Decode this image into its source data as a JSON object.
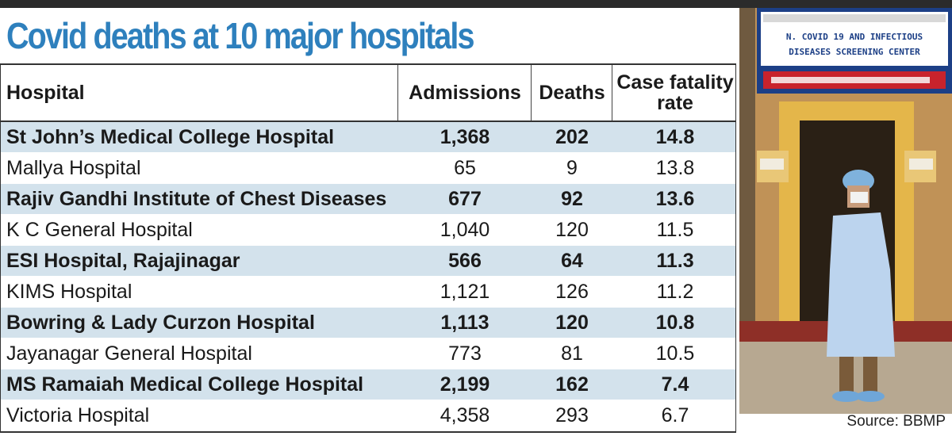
{
  "title": "Covid deaths at 10 major hospitals",
  "source": "Source: BBMP",
  "photo": {
    "sign_line1": "N. COVID 19 AND INFECTIOUS",
    "sign_line2": "DISEASES SCREENING CENTER"
  },
  "chart_data": {
    "type": "table",
    "title": "Covid deaths at 10 major hospitals",
    "columns": [
      "Hospital",
      "Admissions",
      "Deaths",
      "Case fatality rate"
    ],
    "rows": [
      {
        "hospital": "St  John’s Medical College Hospital",
        "admissions": "1,368",
        "deaths": "202",
        "cfr": "14.8"
      },
      {
        "hospital": "Mallya Hospital",
        "admissions": "65",
        "deaths": "9",
        "cfr": "13.8"
      },
      {
        "hospital": "Rajiv Gandhi Institute of Chest Diseases",
        "admissions": "677",
        "deaths": "92",
        "cfr": "13.6"
      },
      {
        "hospital": "K C General Hospital",
        "admissions": "1,040",
        "deaths": "120",
        "cfr": "11.5"
      },
      {
        "hospital": "ESI Hospital, Rajajinagar",
        "admissions": "566",
        "deaths": "64",
        "cfr": "11.3"
      },
      {
        "hospital": "KIMS Hospital",
        "admissions": "1,121",
        "deaths": "126",
        "cfr": "11.2"
      },
      {
        "hospital": "Bowring & Lady Curzon Hospital",
        "admissions": "1,113",
        "deaths": "120",
        "cfr": "10.8"
      },
      {
        "hospital": "Jayanagar General Hospital",
        "admissions": "773",
        "deaths": "81",
        "cfr": "10.5"
      },
      {
        "hospital": "MS Ramaiah Medical College Hospital",
        "admissions": "2,199",
        "deaths": "162",
        "cfr": "7.4"
      },
      {
        "hospital": "Victoria Hospital",
        "admissions": "4,358",
        "deaths": "293",
        "cfr": "6.7"
      }
    ],
    "colors": {
      "title": "#2e80bd",
      "shaded_row": "#d3e2ec"
    }
  }
}
